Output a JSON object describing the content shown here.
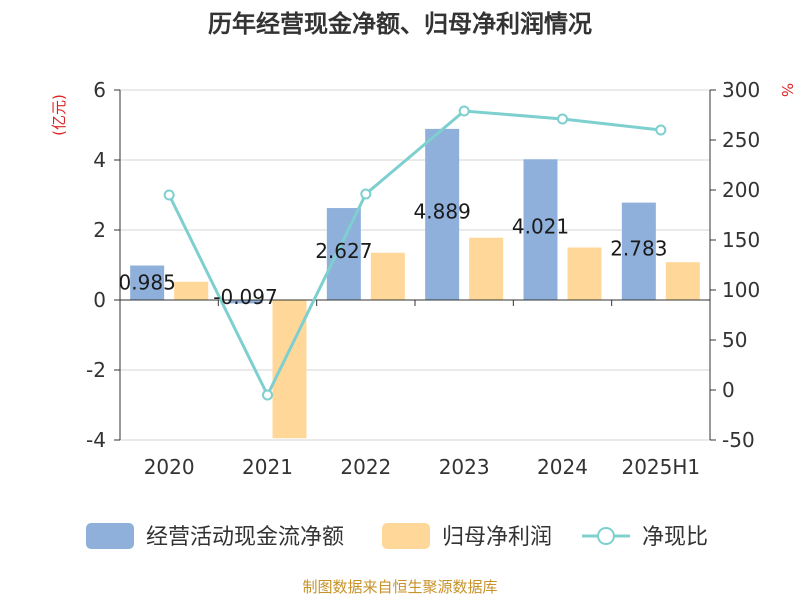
{
  "chart_data": {
    "type": "bar",
    "title": "历年经营现金净额、归母净利润情况",
    "categories": [
      "2020",
      "2021",
      "2022",
      "2023",
      "2024",
      "2025H1"
    ],
    "series": [
      {
        "name": "经营活动现金流净额",
        "type": "bar",
        "axis": "left",
        "color": "#8eb0db",
        "values": [
          0.985,
          -0.097,
          2.627,
          4.889,
          4.021,
          2.783
        ],
        "labels": [
          "0.985",
          "-0.097",
          "2.627",
          "4.889",
          "4.021",
          "2.783"
        ]
      },
      {
        "name": "归母净利润",
        "type": "bar",
        "axis": "left",
        "color": "#ffd899",
        "values": [
          0.52,
          -3.95,
          1.35,
          1.78,
          1.5,
          1.08
        ]
      },
      {
        "name": "净现比",
        "type": "line",
        "axis": "right",
        "color": "#7ecfcf",
        "values": [
          195,
          -5,
          196,
          279,
          271,
          260
        ]
      }
    ],
    "y_left": {
      "unit": "(亿元)",
      "ylim": [
        -4,
        6
      ],
      "ticks": [
        "-4",
        "-2",
        "0",
        "2",
        "4",
        "6"
      ]
    },
    "y_right": {
      "unit": "%",
      "ylim": [
        -50,
        300
      ],
      "ticks": [
        "-50",
        "0",
        "50",
        "100",
        "150",
        "200",
        "250",
        "300"
      ]
    },
    "legend_position": "bottom",
    "grid": true
  },
  "source": "制图数据来自恒生聚源数据库"
}
